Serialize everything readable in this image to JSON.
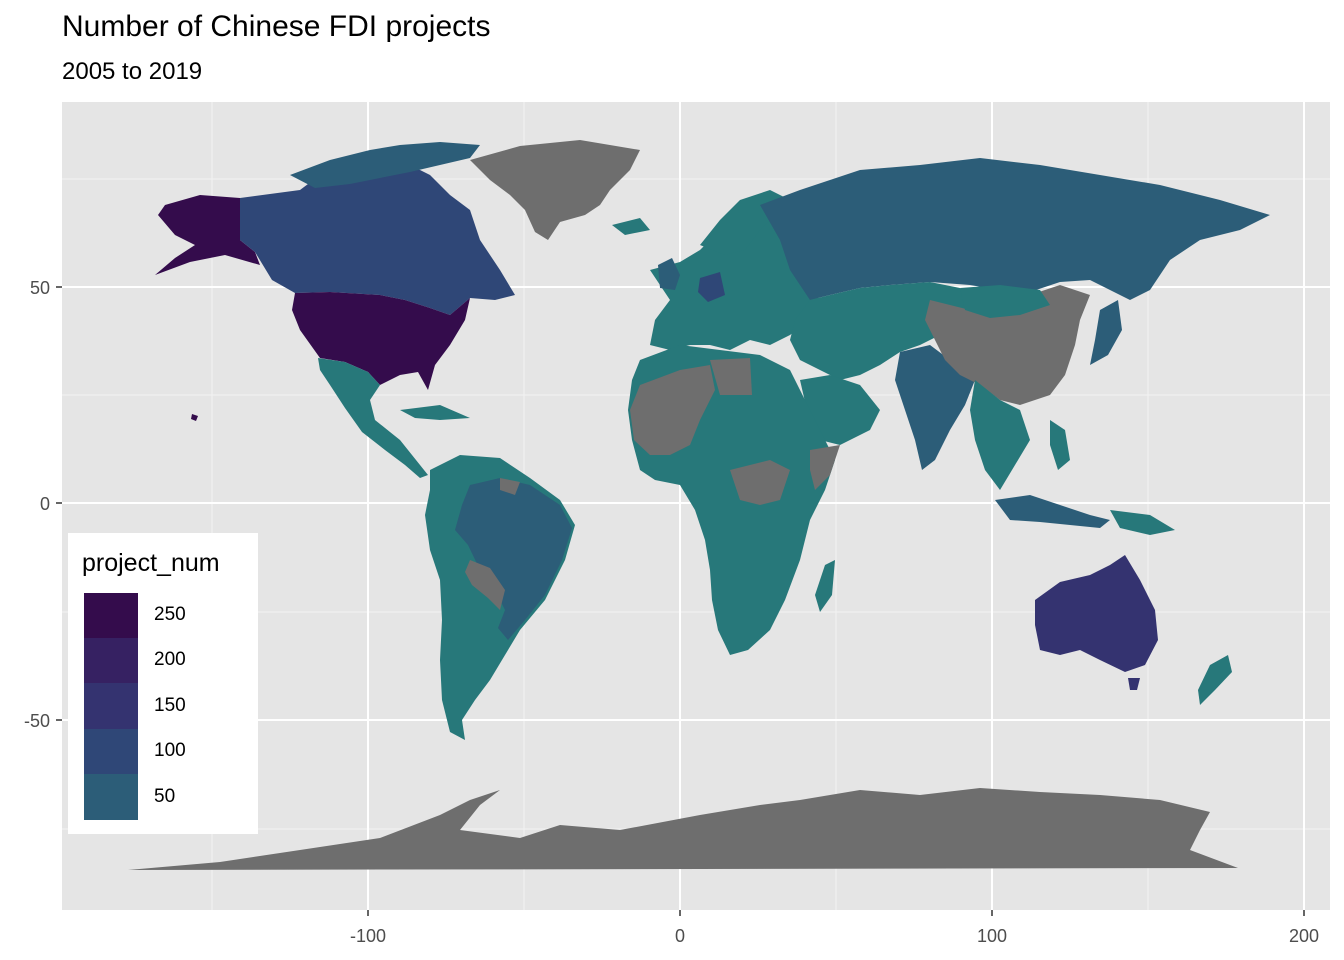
{
  "title": "Number of Chinese FDI projects",
  "subtitle": "2005 to 2019",
  "axes": {
    "x_ticks": [
      "-100",
      "0",
      "100",
      "200"
    ],
    "y_ticks": [
      "50",
      "0",
      "-50"
    ],
    "xlabel": "",
    "ylabel": ""
  },
  "legend": {
    "title": "project_num",
    "items": [
      {
        "label": "250",
        "color": "#340c4c"
      },
      {
        "label": "200",
        "color": "#362162"
      },
      {
        "label": "150",
        "color": "#343370"
      },
      {
        "label": "100",
        "color": "#2f4777"
      },
      {
        "label": "50",
        "color": "#2c5d78"
      }
    ]
  },
  "colors": {
    "panel": "#e5e5e5",
    "no_data": "#6e6e6e",
    "low": "#27787a"
  },
  "chart_data": {
    "type": "choropleth",
    "variable": "project_num",
    "xlim": [
      -190,
      200
    ],
    "ylim": [
      -90,
      90
    ],
    "x_ticks": [
      -100,
      0,
      100,
      200
    ],
    "y_ticks": [
      -50,
      0,
      50
    ],
    "grid": true,
    "legend_position": "bottom-left",
    "regions": [
      {
        "name": "USA",
        "level": 250
      },
      {
        "name": "Alaska",
        "level": 250
      },
      {
        "name": "Australia",
        "level": 150
      },
      {
        "name": "Canada",
        "level": 100
      },
      {
        "name": "Brazil",
        "level": 75
      },
      {
        "name": "Russia",
        "level": 50
      },
      {
        "name": "India",
        "level": 50
      },
      {
        "name": "Germany",
        "level": 100
      },
      {
        "name": "Mexico",
        "level": 25
      },
      {
        "name": "Argentina",
        "level": 25
      },
      {
        "name": "Kazakhstan",
        "level": 25
      },
      {
        "name": "Africa",
        "level": 25
      },
      {
        "name": "Greenland",
        "level": null
      },
      {
        "name": "China",
        "level": null
      },
      {
        "name": "Antarctica",
        "level": null
      }
    ]
  }
}
